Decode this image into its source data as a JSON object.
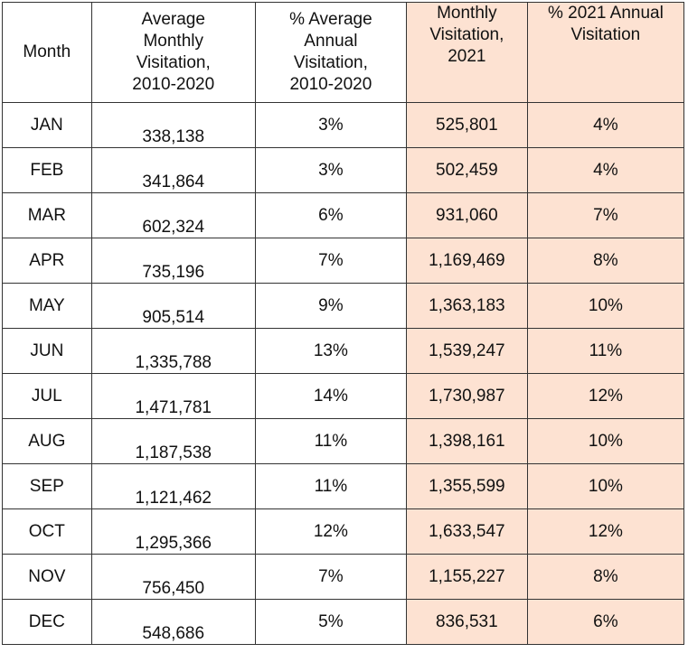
{
  "colors": {
    "highlight": "#fde2d2",
    "border": "#333333"
  },
  "table": {
    "headers": {
      "month": "Month",
      "avg_monthly": "Average\nMonthly\nVisitation,\n2010-2020",
      "pct_avg_annual": "% Average\nAnnual\nVisitation,\n2010-2020",
      "monthly_2021": "Monthly\nVisitation,\n2021",
      "pct_2021": "% 2021 Annual\nVisitation"
    },
    "rows": [
      {
        "month": "JAN",
        "avg": "338,138",
        "pct_avg": "3%",
        "m2021": "525,801",
        "p2021": "4%"
      },
      {
        "month": "FEB",
        "avg": "341,864",
        "pct_avg": "3%",
        "m2021": "502,459",
        "p2021": "4%"
      },
      {
        "month": "MAR",
        "avg": "602,324",
        "pct_avg": "6%",
        "m2021": "931,060",
        "p2021": "7%"
      },
      {
        "month": "APR",
        "avg": "735,196",
        "pct_avg": "7%",
        "m2021": "1,169,469",
        "p2021": "8%"
      },
      {
        "month": "MAY",
        "avg": "905,514",
        "pct_avg": "9%",
        "m2021": "1,363,183",
        "p2021": "10%"
      },
      {
        "month": "JUN",
        "avg": "1,335,788",
        "pct_avg": "13%",
        "m2021": "1,539,247",
        "p2021": "11%"
      },
      {
        "month": "JUL",
        "avg": "1,471,781",
        "pct_avg": "14%",
        "m2021": "1,730,987",
        "p2021": "12%"
      },
      {
        "month": "AUG",
        "avg": "1,187,538",
        "pct_avg": "11%",
        "m2021": "1,398,161",
        "p2021": "10%"
      },
      {
        "month": "SEP",
        "avg": "1,121,462",
        "pct_avg": "11%",
        "m2021": "1,355,599",
        "p2021": "10%"
      },
      {
        "month": "OCT",
        "avg": "1,295,366",
        "pct_avg": "12%",
        "m2021": "1,633,547",
        "p2021": "12%"
      },
      {
        "month": "NOV",
        "avg": "756,450",
        "pct_avg": "7%",
        "m2021": "1,155,227",
        "p2021": "8%"
      },
      {
        "month": "DEC",
        "avg": "548,686",
        "pct_avg": "5%",
        "m2021": "836,531",
        "p2021": "6%"
      }
    ]
  }
}
